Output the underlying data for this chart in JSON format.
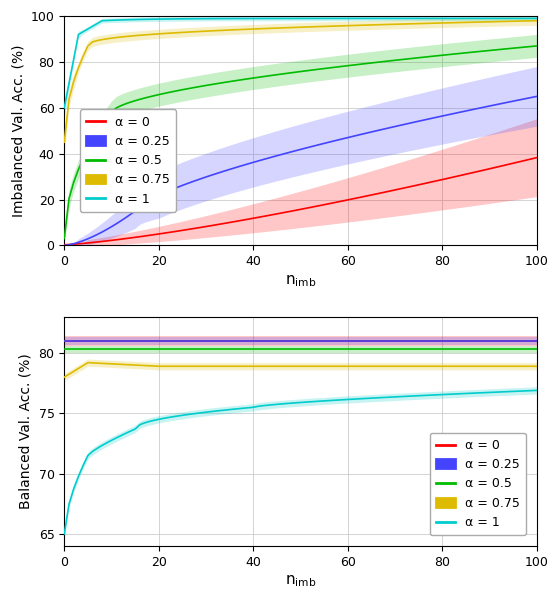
{
  "colors": {
    "alpha_0": "#FF0000",
    "alpha_025": "#4444FF",
    "alpha_05": "#00BB00",
    "alpha_075": "#DDBB00",
    "alpha_1": "#00CCCC"
  },
  "legend_labels": [
    "α = 0",
    "α = 0.25",
    "α = 0.5",
    "α = 0.75",
    "α = 1"
  ],
  "ylabel_top": "Imbalanced Val. Acc. (%)",
  "ylabel_bottom": "Balanced Val. Acc. (%)",
  "top": {
    "ylim": [
      0,
      100
    ],
    "yticks": [
      0,
      20,
      40,
      60,
      80,
      100
    ],
    "xticks": [
      0,
      20,
      40,
      60,
      80,
      100
    ]
  },
  "bottom": {
    "ylim": [
      64,
      83
    ],
    "yticks": [
      65,
      70,
      75,
      80
    ],
    "xticks": [
      0,
      20,
      40,
      60,
      80,
      100
    ]
  }
}
